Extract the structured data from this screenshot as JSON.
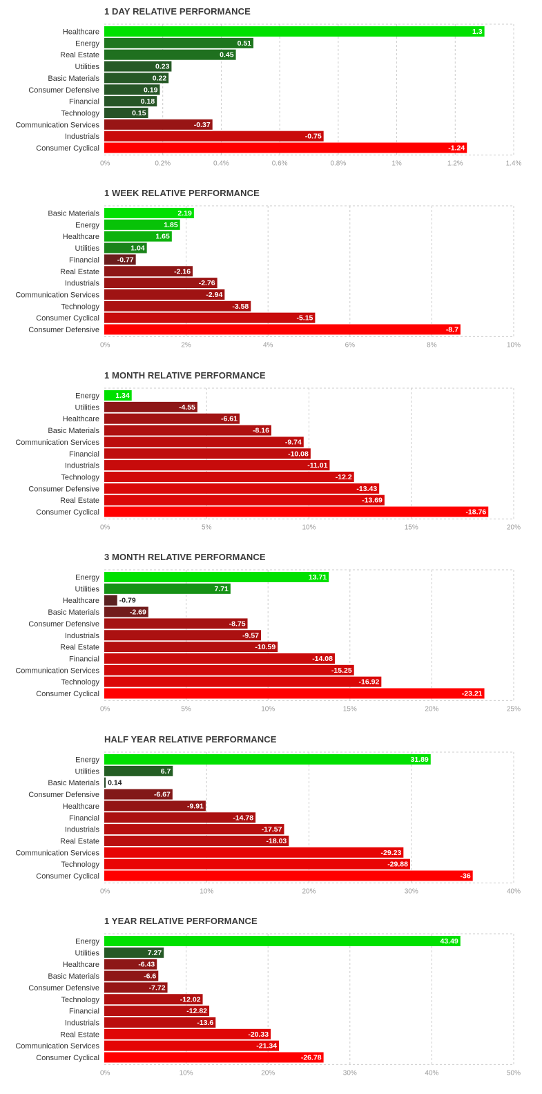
{
  "chart_data": [
    {
      "type": "bar",
      "orientation": "horizontal",
      "title": "1 DAY RELATIVE PERFORMANCE",
      "categories": [
        "Healthcare",
        "Energy",
        "Real Estate",
        "Utilities",
        "Basic Materials",
        "Consumer Defensive",
        "Financial",
        "Technology",
        "Communication Services",
        "Industrials",
        "Consumer Cyclical"
      ],
      "values": [
        1.3,
        0.51,
        0.45,
        0.23,
        0.22,
        0.19,
        0.18,
        0.15,
        -0.37,
        -0.75,
        -1.24
      ],
      "value_labels": [
        "1.3",
        "0.51",
        "0.45",
        "0.23",
        "0.22",
        "0.19",
        "0.18",
        "0.15",
        "-0.37",
        "-0.75",
        "-1.24"
      ],
      "xlim": [
        0,
        1.4
      ],
      "ticks": [
        0,
        0.2,
        0.4,
        0.6,
        0.8,
        1,
        1.2,
        1.4
      ],
      "tick_labels": [
        "0%",
        "0.2%",
        "0.4%",
        "0.6%",
        "0.8%",
        "1%",
        "1.2%",
        "1.4%"
      ],
      "bar_length": "absolute value",
      "grid": true
    },
    {
      "type": "bar",
      "orientation": "horizontal",
      "title": "1 WEEK RELATIVE PERFORMANCE",
      "categories": [
        "Basic Materials",
        "Energy",
        "Healthcare",
        "Utilities",
        "Financial",
        "Real Estate",
        "Industrials",
        "Communication Services",
        "Technology",
        "Consumer Cyclical",
        "Consumer Defensive"
      ],
      "values": [
        2.19,
        1.85,
        1.65,
        1.04,
        -0.77,
        -2.16,
        -2.76,
        -2.94,
        -3.58,
        -5.15,
        -8.7
      ],
      "value_labels": [
        "2.19",
        "1.85",
        "1.65",
        "1.04",
        "-0.77",
        "-2.16",
        "-2.76",
        "-2.94",
        "-3.58",
        "-5.15",
        "-8.7"
      ],
      "xlim": [
        0,
        10
      ],
      "ticks": [
        0,
        2,
        4,
        6,
        8,
        10
      ],
      "tick_labels": [
        "0%",
        "2%",
        "4%",
        "6%",
        "8%",
        "10%"
      ],
      "bar_length": "absolute value",
      "grid": true
    },
    {
      "type": "bar",
      "orientation": "horizontal",
      "title": "1 MONTH RELATIVE PERFORMANCE",
      "categories": [
        "Energy",
        "Utilities",
        "Healthcare",
        "Basic Materials",
        "Communication Services",
        "Financial",
        "Industrials",
        "Technology",
        "Consumer Defensive",
        "Real Estate",
        "Consumer Cyclical"
      ],
      "values": [
        1.34,
        -4.55,
        -6.61,
        -8.16,
        -9.74,
        -10.08,
        -11.01,
        -12.2,
        -13.43,
        -13.69,
        -18.76
      ],
      "value_labels": [
        "1.34",
        "-4.55",
        "-6.61",
        "-8.16",
        "-9.74",
        "-10.08",
        "-11.01",
        "-12.2",
        "-13.43",
        "-13.69",
        "-18.76"
      ],
      "xlim": [
        0,
        20
      ],
      "ticks": [
        0,
        5,
        10,
        15,
        20
      ],
      "tick_labels": [
        "0%",
        "5%",
        "10%",
        "15%",
        "20%"
      ],
      "bar_length": "absolute value",
      "grid": true
    },
    {
      "type": "bar",
      "orientation": "horizontal",
      "title": "3 MONTH RELATIVE PERFORMANCE",
      "categories": [
        "Energy",
        "Utilities",
        "Healthcare",
        "Basic Materials",
        "Consumer Defensive",
        "Industrials",
        "Real Estate",
        "Financial",
        "Communication Services",
        "Technology",
        "Consumer Cyclical"
      ],
      "values": [
        13.71,
        7.71,
        -0.79,
        -2.69,
        -8.75,
        -9.57,
        -10.59,
        -14.08,
        -15.25,
        -16.92,
        -23.21
      ],
      "value_labels": [
        "13.71",
        "7.71",
        "-0.79",
        "-2.69",
        "-8.75",
        "-9.57",
        "-10.59",
        "-14.08",
        "-15.25",
        "-16.92",
        "-23.21"
      ],
      "xlim": [
        0,
        25
      ],
      "ticks": [
        0,
        5,
        10,
        15,
        20,
        25
      ],
      "tick_labels": [
        "0%",
        "5%",
        "10%",
        "15%",
        "20%",
        "25%"
      ],
      "bar_length": "absolute value",
      "grid": true
    },
    {
      "type": "bar",
      "orientation": "horizontal",
      "title": "HALF YEAR RELATIVE PERFORMANCE",
      "categories": [
        "Energy",
        "Utilities",
        "Basic Materials",
        "Consumer Defensive",
        "Healthcare",
        "Financial",
        "Industrials",
        "Real Estate",
        "Communication Services",
        "Technology",
        "Consumer Cyclical"
      ],
      "values": [
        31.89,
        6.7,
        0.14,
        -6.67,
        -9.91,
        -14.78,
        -17.57,
        -18.03,
        -29.23,
        -29.88,
        -36
      ],
      "value_labels": [
        "31.89",
        "6.7",
        "0.14",
        "-6.67",
        "-9.91",
        "-14.78",
        "-17.57",
        "-18.03",
        "-29.23",
        "-29.88",
        "-36"
      ],
      "xlim": [
        0,
        40
      ],
      "ticks": [
        0,
        10,
        20,
        30,
        40
      ],
      "tick_labels": [
        "0%",
        "10%",
        "20%",
        "30%",
        "40%"
      ],
      "bar_length": "absolute value",
      "grid": true
    },
    {
      "type": "bar",
      "orientation": "horizontal",
      "title": "1 YEAR RELATIVE PERFORMANCE",
      "categories": [
        "Energy",
        "Utilities",
        "Healthcare",
        "Basic Materials",
        "Consumer Defensive",
        "Technology",
        "Financial",
        "Industrials",
        "Real Estate",
        "Communication Services",
        "Consumer Cyclical"
      ],
      "values": [
        43.49,
        7.27,
        -6.43,
        -6.6,
        -7.72,
        -12.02,
        -12.82,
        -13.6,
        -20.33,
        -21.34,
        -26.78
      ],
      "value_labels": [
        "43.49",
        "7.27",
        "-6.43",
        "-6.6",
        "-7.72",
        "-12.02",
        "-12.82",
        "-13.6",
        "-20.33",
        "-21.34",
        "-26.78"
      ],
      "xlim": [
        0,
        50
      ],
      "ticks": [
        0,
        10,
        20,
        30,
        40,
        50
      ],
      "tick_labels": [
        "0%",
        "10%",
        "20%",
        "30%",
        "40%",
        "50%"
      ],
      "bar_length": "absolute value",
      "grid": true
    }
  ],
  "colors": {
    "positive_strong": "#00e000",
    "positive_dark": "#2a4a2a",
    "negative_dark": "#4a2424",
    "negative_strong": "#ff0000",
    "grid": "#cccccc",
    "tick_text": "#9a9a9a",
    "label_text": "#333333",
    "title_text": "#3b3b3b"
  }
}
